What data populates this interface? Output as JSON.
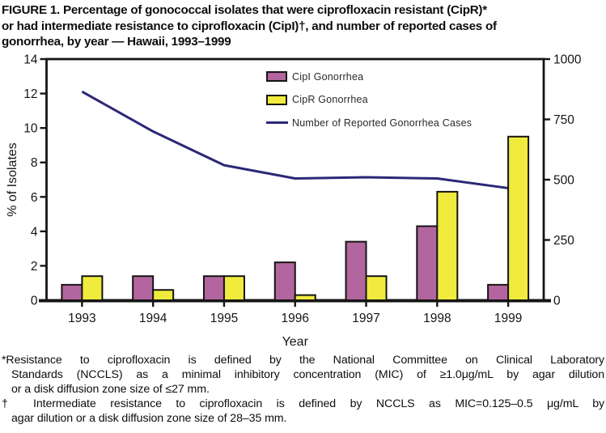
{
  "figure": {
    "title_lines": [
      "FIGURE 1. Percentage of gonococcal isolates that were ciprofloxacin resistant (CipR)*",
      "or had intermediate resistance to ciprofloxacin (CipI)†, and number of reported cases of",
      "gonorrhea, by year — Hawaii, 1993–1999"
    ],
    "footnote1_lines": [
      "*Resistance to ciprofloxacin is defined by the National Committee on Clinical Laboratory",
      "Standards (NCCLS) as a minimal inhibitory concentration (MIC) of ≥1.0μg/mL by agar dilution",
      "or a disk diffusion zone size of ≤27 mm."
    ],
    "footnote2_lines": [
      "† Intermediate resistance to ciprofloxacin is defined by NCCLS as MIC=0.125–0.5 μg/mL by",
      "agar dilution or a disk diffusion zone size of 28–35 mm."
    ]
  },
  "chart_data": {
    "type": "bar",
    "subtype": "grouped-bars-with-overlay-line",
    "categories": [
      "1993",
      "1994",
      "1995",
      "1996",
      "1997",
      "1998",
      "1999"
    ],
    "series": [
      {
        "name": "CipI Gonorrhea",
        "axis": "left",
        "color_key": "cipi",
        "values": [
          0.9,
          1.4,
          1.4,
          2.2,
          3.4,
          4.3,
          0.9
        ]
      },
      {
        "name": "CipR Gonorrhea",
        "axis": "left",
        "color_key": "cipr",
        "values": [
          1.4,
          0.6,
          1.4,
          0.3,
          1.4,
          6.3,
          9.5
        ]
      }
    ],
    "line_series": {
      "name": "Number of Reported Gonorrhea Cases",
      "axis": "right",
      "values": [
        865,
        700,
        560,
        505,
        510,
        505,
        465
      ]
    },
    "title": "",
    "xlabel": "Year",
    "ylabel_left": "% of Isolates",
    "ylabel_right": "",
    "ylim_left": [
      0,
      14
    ],
    "ylim_right": [
      0,
      1000
    ],
    "left_ticks": [
      0,
      2,
      4,
      6,
      8,
      10,
      12,
      14
    ],
    "right_ticks": [
      0,
      250,
      500,
      750,
      1000
    ],
    "grid": false,
    "legend_position": "inside-top-center",
    "legend": [
      {
        "label": "CipI Gonorrhea",
        "swatch": "bar",
        "color_key": "cipi"
      },
      {
        "label": "CipR Gonorrhea",
        "swatch": "bar",
        "color_key": "cipr"
      },
      {
        "label": "Number of Reported Gonorrhea Cases",
        "swatch": "line",
        "color_key": "line"
      }
    ],
    "colors": {
      "cipi": "#b2659e",
      "cipr": "#f0eb3c",
      "line": "#2b2877",
      "axis": "#151515"
    }
  }
}
